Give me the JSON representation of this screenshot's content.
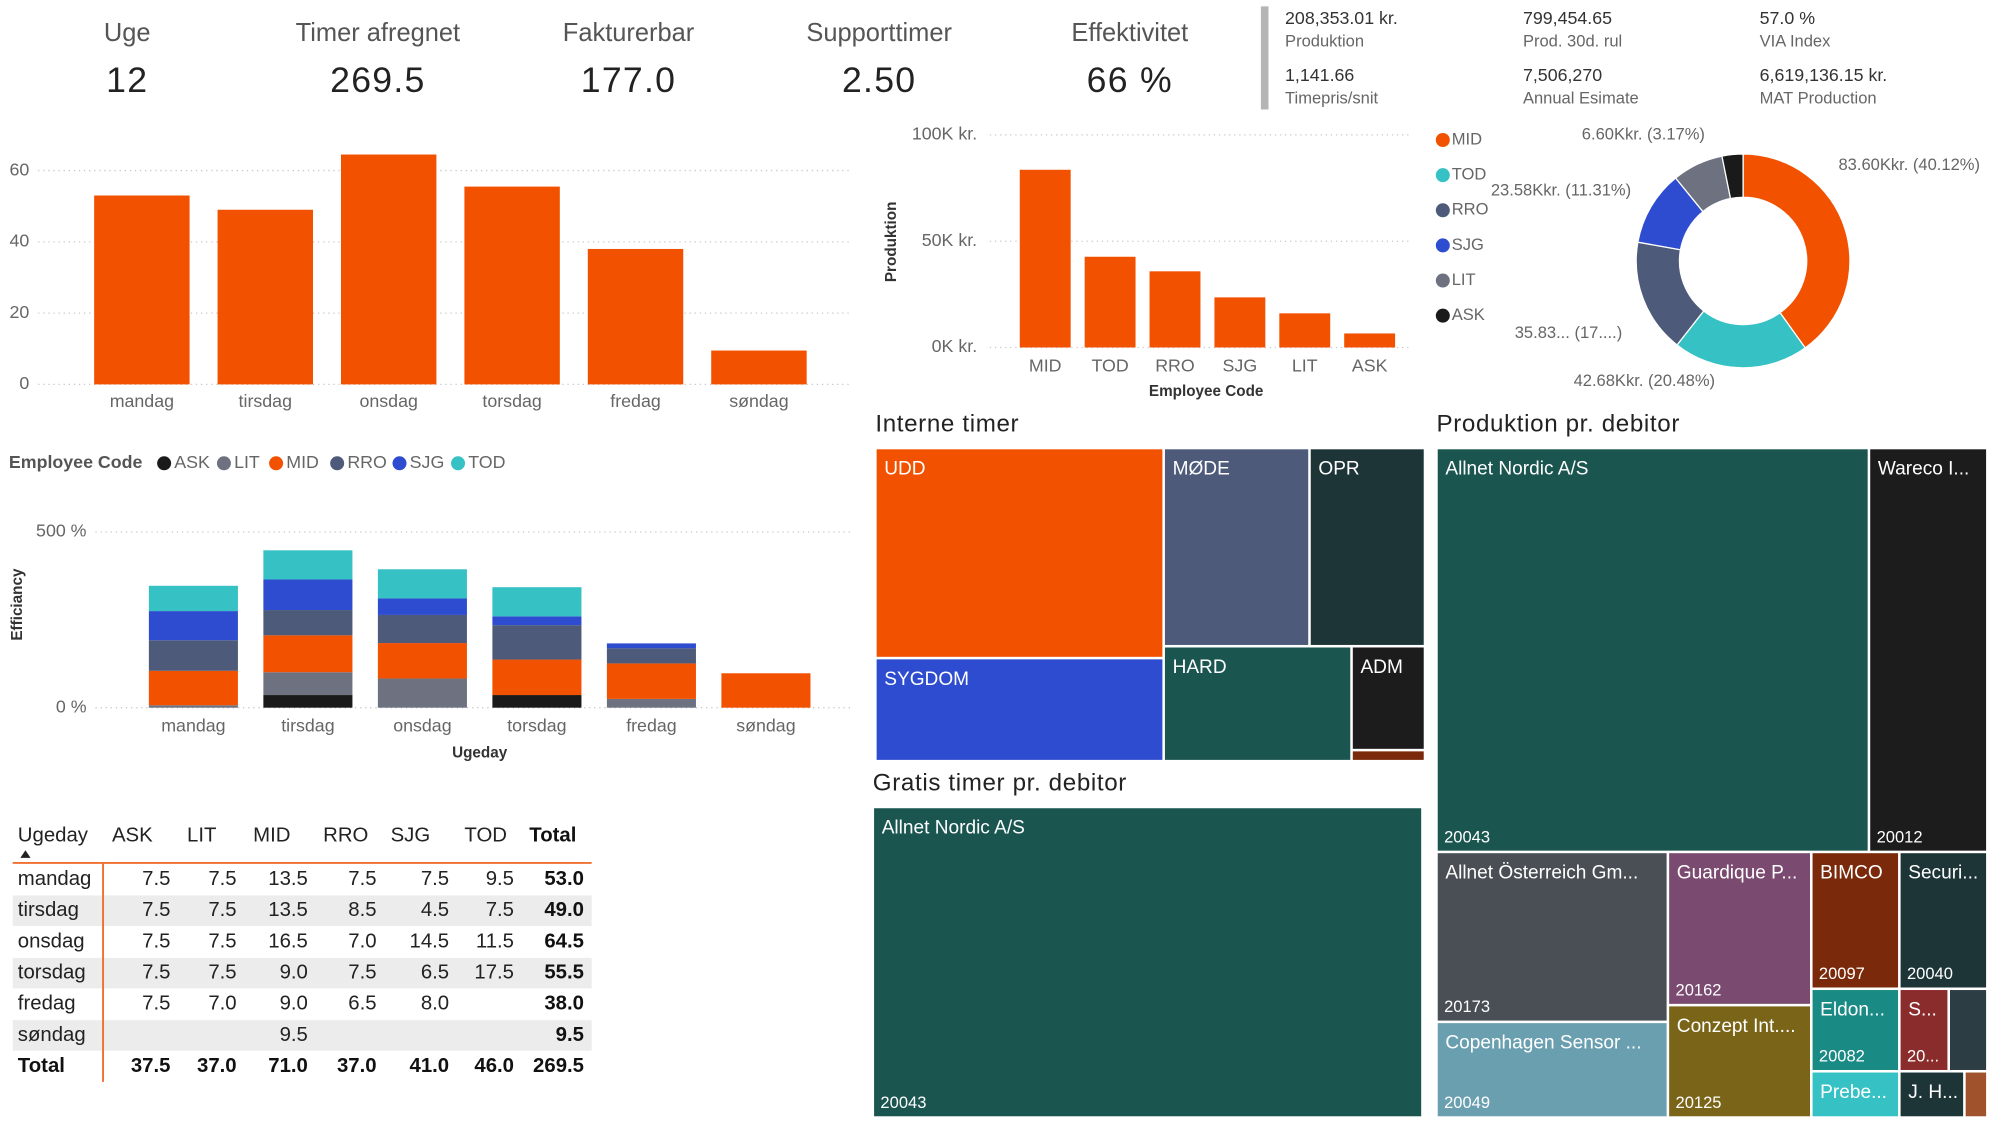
{
  "kpis": [
    {
      "label": "Uge",
      "value": "12"
    },
    {
      "label": "Timer afregnet",
      "value": "269.5"
    },
    {
      "label": "Fakturerbar",
      "value": "177.0"
    },
    {
      "label": "Supporttimer",
      "value": "2.50"
    },
    {
      "label": "Effektivitet",
      "value": "66 %"
    }
  ],
  "stats": [
    {
      "value": "208,353.01 kr.",
      "label": "Produktion"
    },
    {
      "value": "799,454.65",
      "label": "Prod. 30d. rul"
    },
    {
      "value": "57.0 %",
      "label": "VIA Index"
    },
    {
      "value": "1,141.66",
      "label": "Timepris/snit"
    },
    {
      "value": "7,506,270",
      "label": "Annual Esimate"
    },
    {
      "value": "6,619,136.15 kr.",
      "label": "MAT Production"
    }
  ],
  "chart_data": [
    {
      "type": "bar",
      "categories": [
        "mandag",
        "tirsdag",
        "onsdag",
        "torsdag",
        "fredag",
        "søndag"
      ],
      "values": [
        53.0,
        49.0,
        64.5,
        55.5,
        38.0,
        9.5
      ],
      "color": "#f25100",
      "ylim": [
        0,
        65
      ],
      "yticks": [
        0,
        20,
        40,
        60
      ],
      "grid": true
    },
    {
      "type": "stacked_bar",
      "legend_title": "Employee Code",
      "x_label": "Ugeday",
      "y_label": "Efficiancy",
      "categories": [
        "mandag",
        "tirsdag",
        "onsdag",
        "torsdag",
        "fredag",
        "søndag"
      ],
      "series": [
        {
          "name": "ASK",
          "color": "#1a1a1a",
          "values": [
            null,
            36,
            null,
            36,
            null,
            null
          ]
        },
        {
          "name": "LIT",
          "color": "#6e7180",
          "values": [
            7,
            65,
            83,
            null,
            25,
            null
          ]
        },
        {
          "name": "MID",
          "color": "#f25100",
          "values": [
            98,
            105,
            101,
            101,
            101,
            98
          ]
        },
        {
          "name": "RRO",
          "color": "#4d5a7a",
          "values": [
            87,
            72,
            80,
            98,
            43,
            null
          ]
        },
        {
          "name": "SJG",
          "color": "#2e4ccf",
          "values": [
            83,
            87,
            47,
            25,
            14,
            null
          ]
        },
        {
          "name": "TOD",
          "color": "#36c1c4",
          "values": [
            72,
            83,
            83,
            83,
            null,
            null
          ]
        }
      ],
      "ylim": [
        0,
        550
      ],
      "yticks": [
        {
          "value": 0,
          "label": "0 %"
        },
        {
          "value": 500,
          "label": "500 %"
        }
      ],
      "grid": true
    },
    {
      "type": "bar",
      "x_label": "Employee Code",
      "y_label": "Produktion",
      "categories": [
        "MID",
        "TOD",
        "RRO",
        "SJG",
        "LIT",
        "ASK"
      ],
      "values": [
        83600,
        42680,
        35830,
        23580,
        16060,
        6600
      ],
      "color": "#f25100",
      "ylim": [
        0,
        100000
      ],
      "yticks": [
        {
          "value": 0,
          "label": "0K kr."
        },
        {
          "value": 50000,
          "label": "50K kr."
        },
        {
          "value": 100000,
          "label": "100K kr."
        }
      ],
      "grid": true
    },
    {
      "type": "donut",
      "categories": [
        "MID",
        "TOD",
        "RRO",
        "SJG",
        "LIT",
        "ASK"
      ],
      "values": [
        83600,
        42680,
        35830,
        23580,
        16060,
        6600
      ],
      "value_labels": [
        "83.60Kkr. (40.12%)",
        "42.68Kkr. (20.48%)",
        "35.83... (17....)",
        "23.58Kkr. (11.31%)",
        null,
        "6.60Kkr. (3.17%)"
      ],
      "colors": [
        "#f25100",
        "#36c1c4",
        "#4d5a7a",
        "#2e4ccf",
        "#6e7180",
        "#1a1a1a"
      ]
    },
    {
      "type": "treemap",
      "title": "Interne timer",
      "categories": [
        "UDD",
        "SYGDOM",
        "MØDE",
        "OPR",
        "HARD",
        "ADM",
        null
      ],
      "values": [
        37.3,
        18.3,
        17.8,
        14.1,
        13.3,
        4.7,
        0.5
      ],
      "colors": [
        "#f25100",
        "#2e4ccf",
        "#4d5a7a",
        "#1e3538",
        "#1a5550",
        "#1c1c1c",
        "#7a2a0a"
      ]
    },
    {
      "type": "treemap",
      "title": "Gratis timer pr. debitor",
      "categories": [
        "Allnet Nordic A/S"
      ],
      "codes": [
        "20043"
      ],
      "colors": [
        "#1a5550"
      ]
    },
    {
      "type": "treemap",
      "title": "Produktion pr. debitor",
      "categories": [
        "Allnet Nordic A/S",
        "Wareco I...",
        "Allnet Österreich Gm...",
        "Copenhagen Sensor ...",
        "Guardique P...",
        "Conzept Int....",
        "BIMCO",
        "Securi...",
        "Eldon...",
        "S...",
        "Prebe...",
        null,
        "J. H...",
        null
      ],
      "codes": [
        "20043",
        "20012",
        "20173",
        "20049",
        "20162",
        "20125",
        "20097",
        "20040",
        "20082",
        "20...",
        null,
        null,
        null,
        null
      ],
      "values": [
        98600,
        27000,
        22200,
        12500,
        12400,
        9100,
        6800,
        6800,
        4100,
        2300,
        2300,
        1800,
        1700,
        600
      ],
      "colors": [
        "#1a5550",
        "#1c1c1c",
        "#4a4f55",
        "#6a9fb0",
        "#7b4a70",
        "#7a6418",
        "#7a2a0a",
        "#1e3538",
        "#1a8a85",
        "#8b2c2c",
        "#36c1c4",
        "#2c3e44",
        "#1e3538",
        "#a0522d"
      ]
    }
  ],
  "table": {
    "columns": [
      "Ugeday",
      "ASK",
      "LIT",
      "MID",
      "RRO",
      "SJG",
      "TOD",
      "Total"
    ],
    "rows": [
      [
        "mandag",
        "7.5",
        "7.5",
        "13.5",
        "7.5",
        "7.5",
        "9.5",
        "53.0"
      ],
      [
        "tirsdag",
        "7.5",
        "7.5",
        "13.5",
        "8.5",
        "4.5",
        "7.5",
        "49.0"
      ],
      [
        "onsdag",
        "7.5",
        "7.5",
        "16.5",
        "7.0",
        "14.5",
        "11.5",
        "64.5"
      ],
      [
        "torsdag",
        "7.5",
        "7.5",
        "9.0",
        "7.5",
        "6.5",
        "17.5",
        "55.5"
      ],
      [
        "fredag",
        "7.5",
        "7.0",
        "9.0",
        "6.5",
        "8.0",
        null,
        "38.0"
      ],
      [
        "søndag",
        null,
        null,
        "9.5",
        null,
        null,
        null,
        "9.5"
      ]
    ],
    "total": [
      "Total",
      "37.5",
      "37.0",
      "71.0",
      "37.0",
      "41.0",
      "46.0",
      "269.5"
    ]
  }
}
